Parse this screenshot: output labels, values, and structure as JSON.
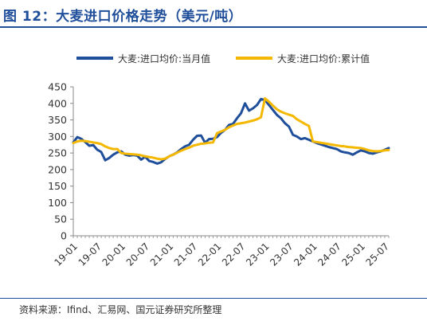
{
  "header": {
    "title": "图 12：大麦进口价格走势（美元/吨）"
  },
  "footer": {
    "source": "资料来源：Ifind、汇易网、国元证券研究所整理"
  },
  "colors": {
    "title": "#1f4e9a",
    "series_monthly": "#1f4e9a",
    "series_cumulative": "#f5b800",
    "axis": "#888888"
  },
  "chart_data": {
    "type": "line",
    "title": "",
    "xlabel": "",
    "ylabel": "",
    "ylim": [
      0,
      450
    ],
    "yticks": [
      0,
      50,
      100,
      150,
      200,
      250,
      300,
      350,
      400,
      450
    ],
    "xticks": [
      "19-01",
      "19-07",
      "20-01",
      "20-07",
      "21-01",
      "21-07",
      "22-01",
      "22-07",
      "23-01",
      "23-07",
      "24-01",
      "24-07",
      "25-01",
      "25-07"
    ],
    "grid": false,
    "legend_position": "top",
    "x": [
      "19-01",
      "19-02",
      "19-03",
      "19-04",
      "19-05",
      "19-06",
      "19-07",
      "19-08",
      "19-09",
      "19-10",
      "19-11",
      "19-12",
      "20-01",
      "20-02",
      "20-03",
      "20-04",
      "20-05",
      "20-06",
      "20-07",
      "20-08",
      "20-09",
      "20-10",
      "20-11",
      "20-12",
      "21-01",
      "21-02",
      "21-03",
      "21-04",
      "21-05",
      "21-06",
      "21-07",
      "21-08",
      "21-09",
      "21-10",
      "21-11",
      "21-12",
      "22-01",
      "22-02",
      "22-03",
      "22-04",
      "22-05",
      "22-06",
      "22-07",
      "22-08",
      "22-09",
      "22-10",
      "22-11",
      "22-12",
      "23-01",
      "23-02",
      "23-03",
      "23-04",
      "23-05",
      "23-06",
      "23-07",
      "23-08",
      "23-09",
      "23-10",
      "23-11",
      "23-12",
      "24-01",
      "24-02",
      "24-03",
      "24-04",
      "24-05",
      "24-06",
      "24-07",
      "24-08",
      "24-09",
      "24-10",
      "24-11",
      "24-12",
      "25-01",
      "25-02",
      "25-03",
      "25-04",
      "25-05",
      "25-06",
      "25-07",
      "25-08"
    ],
    "series": [
      {
        "name": "大麦:进口均价:当月值",
        "color": "#1f4e9a",
        "values": [
          282,
          298,
          293,
          283,
          272,
          274,
          260,
          253,
          228,
          235,
          245,
          252,
          255,
          245,
          242,
          244,
          242,
          230,
          239,
          226,
          223,
          218,
          222,
          232,
          240,
          245,
          252,
          262,
          270,
          275,
          290,
          302,
          303,
          281,
          292,
          293,
          298,
          311,
          320,
          335,
          338,
          355,
          370,
          400,
          378,
          385,
          395,
          413,
          410,
          395,
          380,
          365,
          355,
          340,
          330,
          305,
          300,
          292,
          295,
          290,
          285,
          280,
          276,
          272,
          268,
          265,
          262,
          255,
          252,
          250,
          245,
          252,
          258,
          255,
          250,
          248,
          252,
          255,
          260,
          265
        ]
      },
      {
        "name": "大麦:进口均价:累计值",
        "color": "#f5b800",
        "values": [
          280,
          285,
          287,
          286,
          284,
          282,
          280,
          277,
          270,
          265,
          262,
          262,
          250,
          248,
          247,
          246,
          245,
          243,
          240,
          238,
          236,
          233,
          231,
          233,
          240,
          245,
          251,
          257,
          262,
          266,
          272,
          275,
          278,
          279,
          281,
          282,
          310,
          315,
          320,
          328,
          333,
          338,
          340,
          342,
          345,
          348,
          352,
          358,
          415,
          405,
          393,
          382,
          375,
          370,
          366,
          362,
          352,
          345,
          338,
          332,
          285,
          283,
          281,
          279,
          277,
          275,
          273,
          271,
          270,
          268,
          267,
          266,
          265,
          262,
          258,
          256,
          255,
          256,
          258,
          259
        ]
      }
    ]
  }
}
